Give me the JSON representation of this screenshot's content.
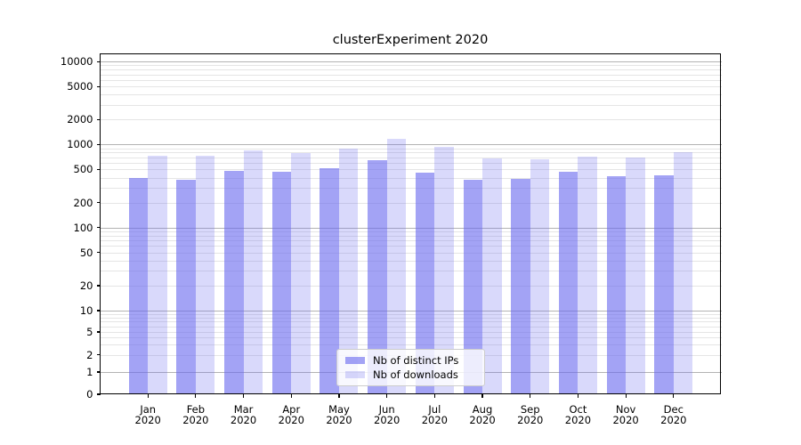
{
  "chart_data": {
    "type": "bar",
    "title": "clusterExperiment 2020",
    "categories": [
      "Jan 2020",
      "Feb 2020",
      "Mar 2020",
      "Apr 2020",
      "May 2020",
      "Jun 2020",
      "Jul 2020",
      "Aug 2020",
      "Sep 2020",
      "Oct 2020",
      "Nov 2020",
      "Dec 2020"
    ],
    "x_tick_labels": [
      [
        "Jan",
        "2020"
      ],
      [
        "Feb",
        "2020"
      ],
      [
        "Mar",
        "2020"
      ],
      [
        "Apr",
        "2020"
      ],
      [
        "May",
        "2020"
      ],
      [
        "Jun",
        "2020"
      ],
      [
        "Jul",
        "2020"
      ],
      [
        "Aug",
        "2020"
      ],
      [
        "Sep",
        "2020"
      ],
      [
        "Oct",
        "2020"
      ],
      [
        "Nov",
        "2020"
      ],
      [
        "Dec",
        "2020"
      ]
    ],
    "series": [
      {
        "name": "Nb of distinct IPs",
        "color": "rgba(102,102,238,0.6)",
        "values": [
          400,
          378,
          480,
          465,
          515,
          650,
          455,
          373,
          385,
          475,
          420,
          430
        ]
      },
      {
        "name": "Nb of downloads",
        "color": "rgba(102,102,238,0.25)",
        "values": [
          730,
          725,
          860,
          785,
          885,
          1180,
          940,
          675,
          665,
          715,
          700,
          810
        ]
      }
    ],
    "y_ticks": [
      10000,
      5000,
      2000,
      1000,
      500,
      200,
      100,
      50,
      20,
      10,
      5,
      2,
      1,
      0
    ],
    "y_scale": "symlog",
    "ylim": [
      0,
      12500
    ],
    "grid": true,
    "legend_position": "lower center",
    "colors": {
      "major_grid": "#b3b3b3",
      "minor_grid": "#e5e5e5",
      "axis": "#000000",
      "text": "#000000"
    }
  }
}
